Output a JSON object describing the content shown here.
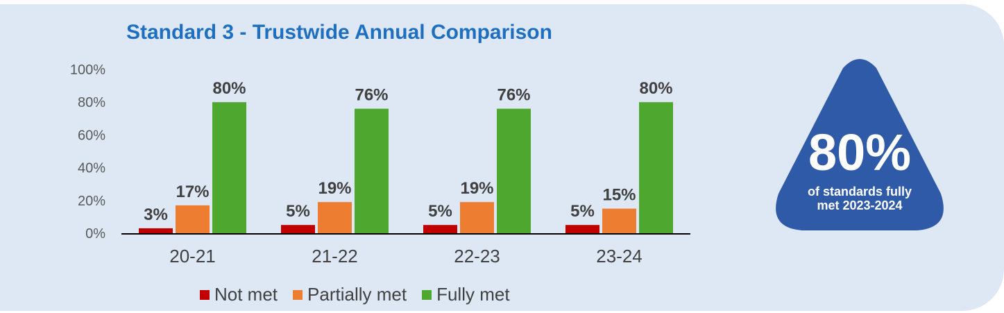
{
  "chart_data": {
    "type": "bar",
    "title": "Standard 3 - Trustwide Annual Comparison",
    "categories": [
      "20-21",
      "21-22",
      "22-23",
      "23-24"
    ],
    "series": [
      {
        "name": "Not met",
        "values": [
          3,
          5,
          5,
          5
        ],
        "labels": [
          "3%",
          "5%",
          "5%",
          "5%"
        ],
        "color": "#c00000"
      },
      {
        "name": "Partially met",
        "values": [
          17,
          19,
          19,
          15
        ],
        "labels": [
          "17%",
          "19%",
          "19%",
          "15%"
        ],
        "color": "#ed7d31"
      },
      {
        "name": "Fully met",
        "values": [
          80,
          76,
          76,
          80
        ],
        "labels": [
          "80%",
          "76%",
          "76%",
          "80%"
        ],
        "color": "#4ea72e"
      }
    ],
    "ylim": [
      0,
      100
    ],
    "yticks": [
      "0%",
      "20%",
      "40%",
      "60%",
      "80%",
      "100%"
    ],
    "grid": false,
    "legend": "bottom"
  },
  "badge": {
    "value": "80%",
    "line1": "of standards fully",
    "line2": "met 2023-2024",
    "color": "#2e5aa8"
  },
  "colors": {
    "panel_background": "#dde8f4",
    "title": "#1f6fc0"
  }
}
